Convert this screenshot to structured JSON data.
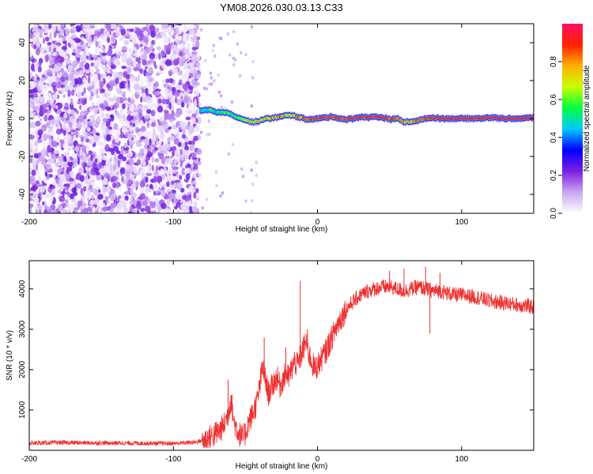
{
  "figure": {
    "title": "YM08.2026.030.03.13.C33"
  },
  "chart_data": [
    {
      "type": "heatmap",
      "name": "spectrogram",
      "xlabel": "Height of straight line (km)",
      "ylabel": "Frequency (Hz)",
      "xlim": [
        -200,
        150
      ],
      "ylim": [
        -50,
        50
      ],
      "xticks": [
        -200,
        -100,
        0,
        100
      ],
      "yticks": [
        -40,
        -20,
        0,
        20,
        40
      ],
      "colorbar": {
        "label": "Normalized spectral amplitude",
        "range": [
          0.0,
          1.0
        ],
        "ticks": [
          "0.0",
          "0.2",
          "0.4",
          "0.6",
          "0.8"
        ],
        "colors": [
          "#ffffff",
          "#c9a6f2",
          "#7b1fe0",
          "#0000ff",
          "#00c8ff",
          "#00ff40",
          "#c8ff00",
          "#ffb000",
          "#ff2000",
          "#ff1060"
        ]
      },
      "noise_region": {
        "x_range": [
          -200,
          -82
        ],
        "amplitude": [
          0.02,
          0.25
        ]
      },
      "signal_onset_x": -82,
      "signal_track": {
        "x": [
          -82,
          -75,
          -70,
          -65,
          -60,
          -55,
          -50,
          -45,
          -40,
          -35,
          -30,
          -25,
          -20,
          -15,
          -10,
          -5,
          0,
          5,
          10,
          15,
          20,
          25,
          30,
          35,
          40,
          45,
          50,
          55,
          60,
          65,
          70,
          75,
          80,
          85,
          90,
          100,
          110,
          120,
          130,
          140,
          150
        ],
        "freq": [
          4,
          4.5,
          3,
          3.5,
          2,
          0.5,
          -1,
          -2,
          -1,
          0,
          0.5,
          1,
          2,
          1,
          0,
          -0.5,
          0,
          0.5,
          1,
          0,
          -0.5,
          0,
          1,
          0.5,
          1,
          0.5,
          -0.5,
          0,
          -2,
          -1.5,
          -1,
          0,
          0.5,
          0,
          0,
          0,
          0,
          0.5,
          0,
          0,
          0.5
        ],
        "amplitude": [
          0.45,
          0.55,
          0.5,
          0.6,
          0.55,
          0.6,
          0.65,
          0.7,
          0.72,
          0.75,
          0.78,
          0.8,
          0.7,
          0.8,
          0.85,
          0.9,
          0.92,
          0.9,
          0.88,
          0.9,
          0.92,
          0.95,
          0.9,
          0.92,
          0.95,
          0.93,
          0.9,
          0.85,
          0.75,
          0.8,
          0.85,
          0.9,
          0.92,
          0.95,
          0.95,
          0.95,
          0.96,
          0.97,
          0.97,
          0.98,
          0.98
        ]
      }
    },
    {
      "type": "line",
      "name": "snr",
      "xlabel": "Height of straight line (km)",
      "ylabel": "SNR (10 * v/v)",
      "xlim": [
        -200,
        150
      ],
      "ylim": [
        0,
        4700
      ],
      "xticks": [
        -200,
        -100,
        0,
        100
      ],
      "yticks": [
        1000,
        2000,
        3000,
        4000
      ],
      "series": [
        {
          "name": "SNR",
          "color": "#ee3030",
          "x": [
            -200,
            -180,
            -160,
            -140,
            -120,
            -100,
            -85,
            -78,
            -72,
            -68,
            -65,
            -62,
            -60,
            -58,
            -55,
            -52,
            -50,
            -48,
            -45,
            -42,
            -40,
            -38,
            -36,
            -34,
            -32,
            -30,
            -28,
            -26,
            -24,
            -22,
            -20,
            -18,
            -16,
            -14,
            -12,
            -10,
            -8,
            -6,
            -4,
            -2,
            0,
            5,
            10,
            15,
            20,
            25,
            30,
            35,
            40,
            45,
            50,
            55,
            60,
            65,
            70,
            75,
            80,
            85,
            90,
            95,
            100,
            110,
            120,
            130,
            140,
            150
          ],
          "y": [
            180,
            190,
            185,
            180,
            175,
            170,
            200,
            260,
            380,
            480,
            620,
            900,
            1300,
            700,
            450,
            300,
            420,
            680,
            900,
            1200,
            1600,
            2100,
            1700,
            1400,
            1550,
            1700,
            1800,
            1600,
            1750,
            1900,
            1800,
            2000,
            2200,
            2100,
            2300,
            2500,
            2700,
            2400,
            2200,
            2000,
            2100,
            2400,
            2800,
            3200,
            3500,
            3700,
            3850,
            3950,
            4000,
            4050,
            4050,
            4000,
            3950,
            4000,
            4050,
            4000,
            3950,
            3950,
            3900,
            3850,
            3850,
            3800,
            3700,
            3650,
            3600,
            3550
          ],
          "spikes": [
            [
              -62,
              1750
            ],
            [
              -37,
              2800
            ],
            [
              -22,
              2550
            ],
            [
              -12,
              4200
            ],
            [
              -7,
              3000
            ],
            [
              50,
              4450
            ],
            [
              60,
              4500
            ],
            [
              75,
              4550
            ],
            [
              78,
              2900
            ],
            [
              85,
              4400
            ]
          ]
        }
      ]
    }
  ]
}
